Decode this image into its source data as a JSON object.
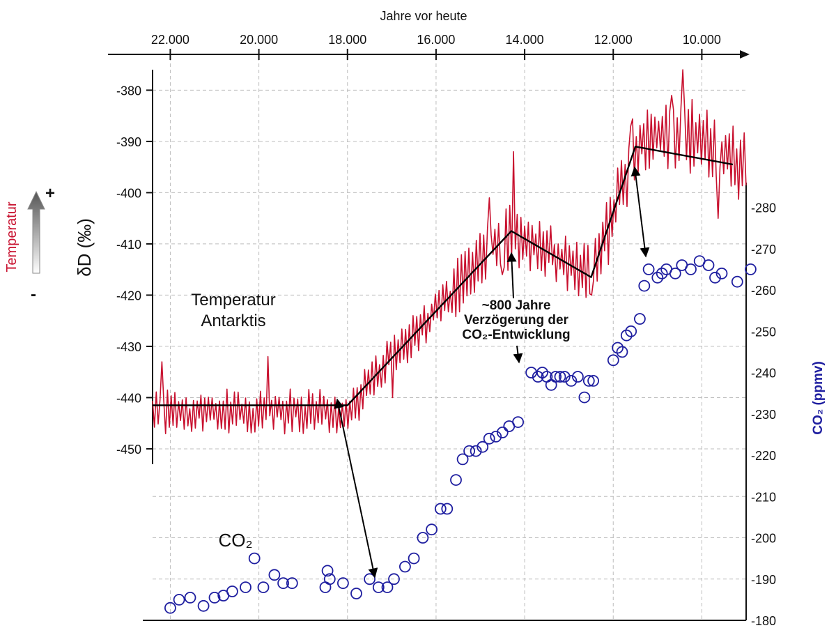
{
  "colors": {
    "temperature": "#c8102e",
    "co2": "#1f1fa0",
    "axis": "#111111",
    "grid": "#bdbdbd",
    "trend": "#000000"
  },
  "chart_data": {
    "type": "line",
    "top_axis": {
      "label": "Jahre vor heute",
      "range": [
        22400,
        9000
      ],
      "ticks": [
        22000,
        20000,
        18000,
        16000,
        14000,
        12000,
        10000
      ],
      "tick_labels": [
        "22.000",
        "20.000",
        "18.000",
        "16.000",
        "14.000",
        "12.000",
        "10.000"
      ]
    },
    "left_axis": {
      "label": "δD  (‰)",
      "side_label": "Temperatur",
      "plus": "+",
      "minus": "-",
      "range": [
        -453,
        -376
      ],
      "ticks": [
        -380,
        -390,
        -400,
        -410,
        -420,
        -430,
        -440,
        -450
      ],
      "tick_labels": [
        "-380",
        "-390",
        "-400",
        "-410",
        "-420",
        "-430",
        "-440",
        "-450"
      ]
    },
    "right_axis": {
      "label": "CO₂ (ppmv)",
      "range": [
        180,
        286
      ],
      "ticks": [
        280,
        270,
        260,
        250,
        240,
        230,
        220,
        210,
        200,
        190,
        180
      ],
      "tick_labels": [
        "-280",
        "-270",
        "-260",
        "-250",
        "-240",
        "-230",
        "-220",
        "-210",
        "-200",
        "-190",
        "-180"
      ]
    },
    "grid": true,
    "series": [
      {
        "name": "Temperatur Antarktis",
        "type": "line",
        "axis": "left",
        "trend": [
          [
            22400,
            -441.5
          ],
          [
            18000,
            -441.5
          ],
          [
            14300,
            -407.5
          ],
          [
            12500,
            -416.5
          ],
          [
            11500,
            -391
          ],
          [
            9300,
            -394.5
          ]
        ],
        "anchors": [
          [
            22400,
            -443
          ],
          [
            18000,
            -443
          ],
          [
            17200,
            -434
          ],
          [
            16000,
            -423
          ],
          [
            15000,
            -413
          ],
          [
            14300,
            -408
          ],
          [
            13500,
            -411
          ],
          [
            12500,
            -416
          ],
          [
            12100,
            -406
          ],
          [
            11500,
            -391
          ],
          [
            11000,
            -389
          ],
          [
            10000,
            -389
          ],
          [
            9000,
            -395
          ]
        ],
        "spikes": [
          [
            22200,
            -433
          ],
          [
            19800,
            -432
          ],
          [
            19000,
            -447
          ],
          [
            17000,
            -440
          ],
          [
            14800,
            -401
          ],
          [
            14500,
            -416
          ],
          [
            14250,
            -392
          ],
          [
            12500,
            -420
          ],
          [
            12100,
            -414
          ],
          [
            11600,
            -387
          ],
          [
            10700,
            -381
          ],
          [
            10450,
            -376
          ],
          [
            9650,
            -405
          ],
          [
            9300,
            -387
          ]
        ]
      },
      {
        "name": "CO₂",
        "type": "scatter",
        "axis": "right",
        "points": [
          [
            22000,
            183
          ],
          [
            21800,
            185
          ],
          [
            21550,
            185.5
          ],
          [
            21250,
            183.5
          ],
          [
            21000,
            185.5
          ],
          [
            20800,
            186
          ],
          [
            20600,
            187
          ],
          [
            20300,
            188
          ],
          [
            20100,
            195
          ],
          [
            19900,
            188
          ],
          [
            19650,
            191
          ],
          [
            19450,
            189
          ],
          [
            19250,
            189
          ],
          [
            18500,
            188
          ],
          [
            18450,
            192
          ],
          [
            18400,
            190
          ],
          [
            18100,
            189
          ],
          [
            17800,
            186.5
          ],
          [
            17500,
            190
          ],
          [
            17300,
            188
          ],
          [
            17100,
            188
          ],
          [
            16950,
            190
          ],
          [
            16700,
            193
          ],
          [
            16500,
            195
          ],
          [
            16300,
            200
          ],
          [
            16100,
            202
          ],
          [
            15900,
            207
          ],
          [
            15750,
            207
          ],
          [
            15550,
            214
          ],
          [
            15400,
            219
          ],
          [
            15250,
            221
          ],
          [
            15100,
            221
          ],
          [
            14950,
            222
          ],
          [
            14800,
            224
          ],
          [
            14650,
            224.5
          ],
          [
            14500,
            225.5
          ],
          [
            14350,
            227
          ],
          [
            14150,
            228
          ],
          [
            13850,
            240
          ],
          [
            13700,
            239
          ],
          [
            13600,
            240
          ],
          [
            13500,
            239
          ],
          [
            13400,
            237
          ],
          [
            13300,
            239
          ],
          [
            13200,
            239
          ],
          [
            13100,
            239
          ],
          [
            12950,
            238
          ],
          [
            12800,
            239
          ],
          [
            12650,
            234
          ],
          [
            12550,
            238
          ],
          [
            12450,
            238
          ],
          [
            12000,
            243
          ],
          [
            11900,
            246
          ],
          [
            11800,
            245
          ],
          [
            11700,
            249
          ],
          [
            11600,
            250
          ],
          [
            11400,
            253
          ],
          [
            11300,
            261
          ],
          [
            11200,
            265
          ],
          [
            11000,
            263
          ],
          [
            10900,
            264
          ],
          [
            10800,
            265
          ],
          [
            10600,
            264
          ],
          [
            10450,
            266
          ],
          [
            10250,
            265
          ],
          [
            10050,
            267
          ],
          [
            9850,
            266
          ],
          [
            9700,
            263
          ],
          [
            9550,
            264
          ],
          [
            9200,
            262
          ],
          [
            8900,
            265
          ]
        ]
      }
    ],
    "annotations": [
      {
        "lines": [
          "Temperatur",
          "Antarktis"
        ]
      },
      {
        "lines": [
          "~800 Jahre",
          "Verzögerung der",
          "CO₂-Entwicklung"
        ]
      },
      {
        "lines": [
          "CO₂"
        ]
      }
    ]
  }
}
